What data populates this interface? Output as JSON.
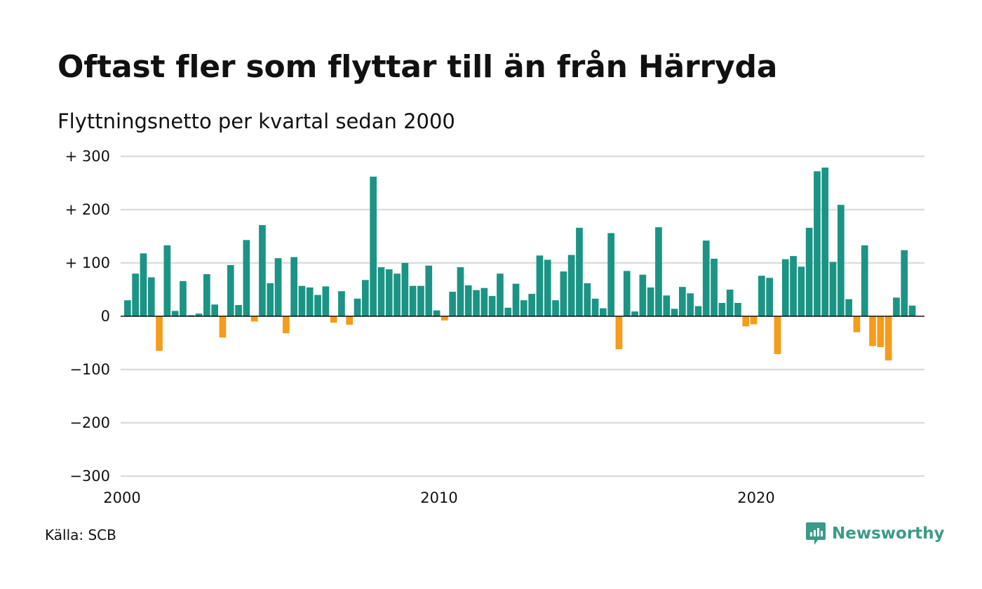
{
  "header": {
    "title": "Oftast fler som flyttar till än från Härryda",
    "subtitle": "Flyttningsnetto per kvartal sedan 2000"
  },
  "footer": {
    "source": "Källa: SCB",
    "brand": "Newsworthy",
    "brand_icon": "newsworthy-logo-icon"
  },
  "colors": {
    "positive": "#1b9485",
    "negative": "#f59c1a",
    "gridline": "#dddddd",
    "zero_line": "#111111",
    "brand": "#3b9a88"
  },
  "chart_data": {
    "type": "bar",
    "ylim": [
      -300,
      300
    ],
    "y_ticks": [
      {
        "value": 300,
        "label": "+ 300"
      },
      {
        "value": 200,
        "label": "+ 200"
      },
      {
        "value": 100,
        "label": "+ 100"
      },
      {
        "value": 0,
        "label": "0"
      },
      {
        "value": -100,
        "label": "−100"
      },
      {
        "value": -200,
        "label": "−200"
      },
      {
        "value": -300,
        "label": "−300"
      }
    ],
    "x_ticks": [
      {
        "value": 2000,
        "label": "2000"
      },
      {
        "value": 2010,
        "label": "2010"
      },
      {
        "value": 2020,
        "label": "2020"
      }
    ],
    "x_start_year": 2000,
    "periods_per_year": 4,
    "grid": true,
    "series": [
      {
        "values": [
          30,
          80,
          118,
          73,
          -65,
          133,
          10,
          66,
          2,
          5,
          79,
          22,
          -40,
          96,
          21,
          143,
          -10,
          171,
          62,
          109,
          -32,
          111,
          57,
          54,
          40,
          56,
          -12,
          47,
          -16,
          33,
          68,
          262,
          92,
          88,
          80,
          100,
          57,
          57,
          95,
          11,
          -8,
          46,
          92,
          58,
          49,
          53,
          38,
          80,
          16,
          61,
          30,
          42,
          114,
          106,
          30,
          84,
          115,
          166,
          62,
          33,
          15,
          156,
          -62,
          85,
          9,
          78,
          54,
          167,
          39,
          14,
          55,
          43,
          19,
          142,
          108,
          25,
          50,
          25,
          -19,
          -15,
          76,
          72,
          -71,
          107,
          113,
          93,
          166,
          272,
          279,
          102,
          209,
          32,
          -30,
          133,
          -56,
          -58,
          -83,
          35,
          124,
          20
        ]
      }
    ]
  }
}
